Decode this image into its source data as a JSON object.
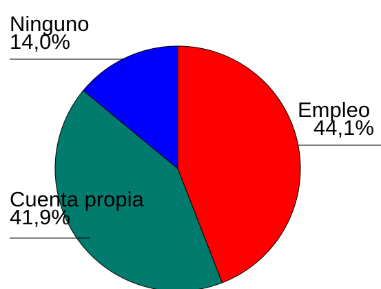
{
  "chart_data": {
    "type": "pie",
    "categories": [
      "Empleo",
      "Cuenta propia",
      "Ninguno"
    ],
    "values": [
      44.1,
      41.9,
      14.0
    ],
    "value_labels": [
      "44,1%",
      "41,9%",
      "14,0%"
    ],
    "colors": [
      "#ff0000",
      "#007b6e",
      "#0000ff"
    ]
  }
}
